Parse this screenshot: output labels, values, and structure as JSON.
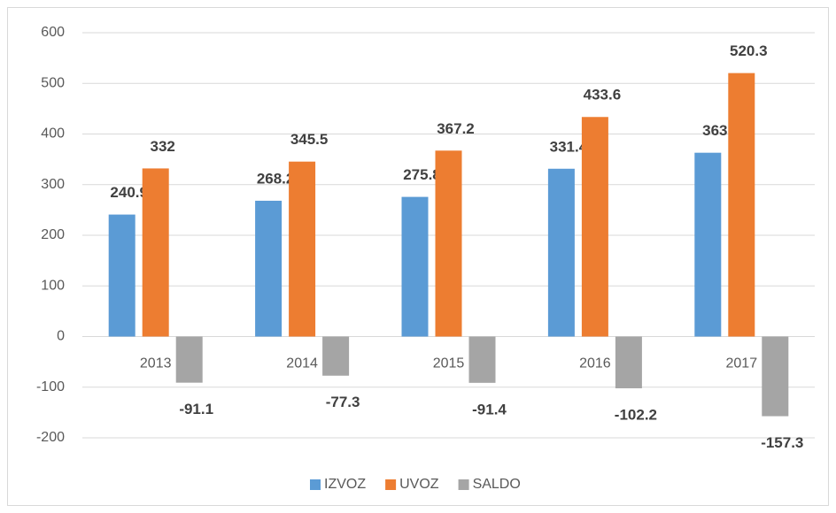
{
  "chart_data": {
    "type": "bar",
    "categories": [
      "2013",
      "2014",
      "2015",
      "2016",
      "2017"
    ],
    "series": [
      {
        "name": "IZVOZ",
        "color": "#5b9bd5",
        "values": [
          240.9,
          268.2,
          275.8,
          331.4,
          363
        ]
      },
      {
        "name": "UVOZ",
        "color": "#ed7d31",
        "values": [
          332,
          345.5,
          367.2,
          433.6,
          520.3
        ]
      },
      {
        "name": "SALDO",
        "color": "#a5a5a5",
        "values": [
          -91.1,
          -77.3,
          -91.4,
          -102.2,
          -157.3
        ]
      }
    ],
    "ylim": [
      -200,
      600
    ],
    "yticks": [
      -200,
      -100,
      0,
      100,
      200,
      300,
      400,
      500,
      600
    ],
    "grid": true,
    "legend": "bottom"
  }
}
